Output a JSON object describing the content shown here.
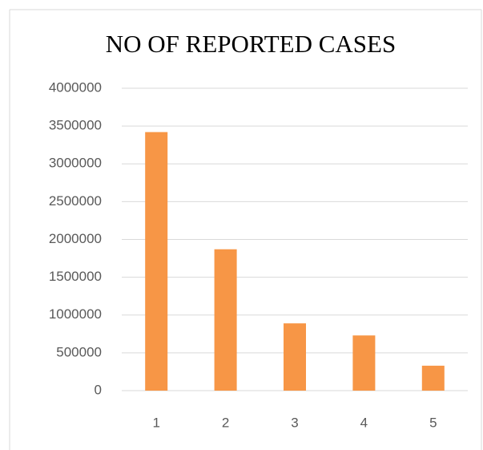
{
  "chart_data": {
    "type": "bar",
    "title": "NO OF REPORTED CASES",
    "categories": [
      "1",
      "2",
      "3",
      "4",
      "5"
    ],
    "values": [
      3420000,
      1870000,
      890000,
      730000,
      330000
    ],
    "color": "#f79646",
    "ylim": [
      0,
      4000000
    ],
    "yticks": [
      0,
      500000,
      1000000,
      1500000,
      2000000,
      2500000,
      3000000,
      3500000,
      4000000
    ],
    "grid": true
  }
}
